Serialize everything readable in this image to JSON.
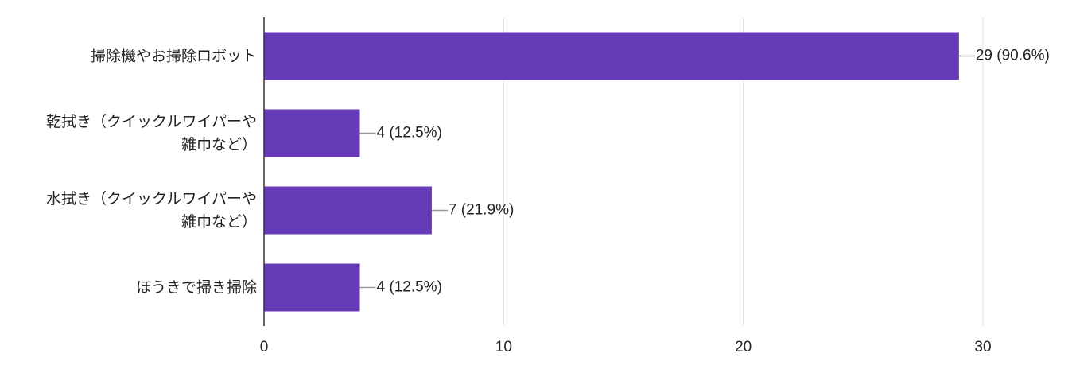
{
  "chart_data": {
    "type": "bar",
    "orientation": "horizontal",
    "categories": [
      "掃除機やお掃除ロボット",
      "乾拭き（クイックルワイパーや\n雑巾など）",
      "水拭き（クイックルワイパーや\n雑巾など）",
      "ほうきで掃き掃除"
    ],
    "values": [
      29,
      4,
      7,
      4
    ],
    "value_labels": [
      "29 (90.6%)",
      "4 (12.5%)",
      "7 (21.9%)",
      "4 (12.5%)"
    ],
    "color": "#673ab7",
    "xlim": [
      0,
      30
    ],
    "xticks": [
      0,
      10,
      20,
      30
    ],
    "grid": true
  }
}
